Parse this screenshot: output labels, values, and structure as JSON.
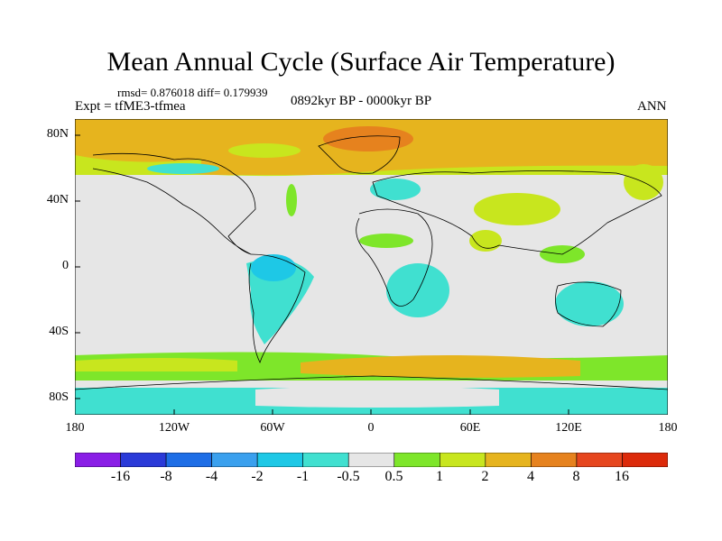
{
  "title": "Mean Annual Cycle (Surface Air Temperature)",
  "stats": "rmsd= 0.876018 diff= 0.179939",
  "experiment": "Expt = tfME3-tfmea",
  "period": "0892kyr BP - 0000kyr BP",
  "season": "ANN",
  "lat_labels": [
    "80N",
    "40N",
    "0",
    "40S",
    "80S"
  ],
  "lon_labels": [
    "180",
    "120W",
    "60W",
    "0",
    "60E",
    "120E",
    "180"
  ],
  "colorbar": {
    "levels": [
      "-16",
      "-8",
      "-4",
      "-2",
      "-1",
      "-0.5",
      "0.5",
      "1",
      "2",
      "4",
      "8",
      "16"
    ],
    "colors": [
      "#8a1ee6",
      "#2a3ad8",
      "#1e6ee6",
      "#3aa0ee",
      "#1ec8e6",
      "#40e0d0",
      "#e6e6e6",
      "#7ee62a",
      "#c8e61e",
      "#e6b41e",
      "#e6821e",
      "#e6461e",
      "#dc2a0a"
    ]
  }
}
